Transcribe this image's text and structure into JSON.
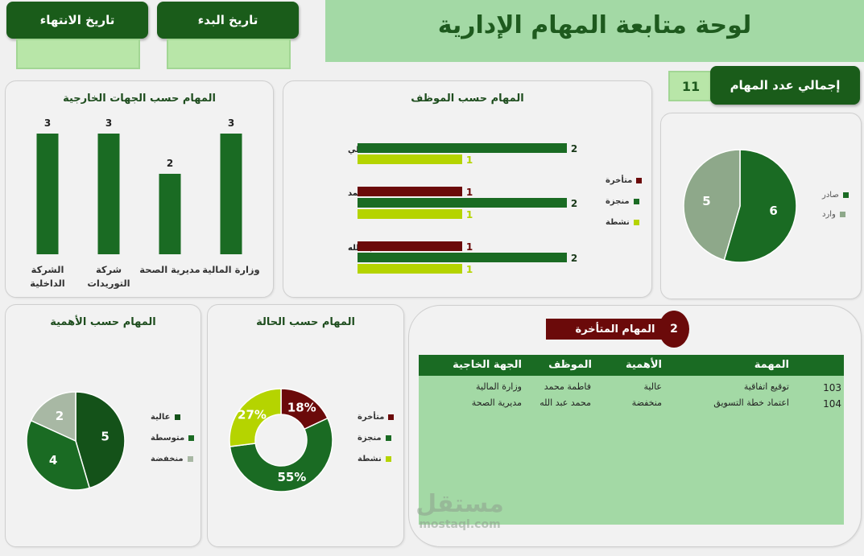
{
  "header": {
    "title": "لوحة متابعة المهام الإدارية",
    "end_date_label": "تاريخ الانتهاء",
    "start_date_label": "تاريخ البدء",
    "end_date_value": "",
    "start_date_value": ""
  },
  "total": {
    "label": "إجمالي عدد المهام",
    "value": "11"
  },
  "external": {
    "title": "المهام حسب الجهات الخارجية"
  },
  "employee": {
    "title": "المهام حسب الموظف",
    "legend": [
      "متأخرة",
      "منجزة",
      "نشطة"
    ]
  },
  "direction": {
    "legend": [
      "صادر",
      "وارد"
    ]
  },
  "importance": {
    "title": "المهام حسب الأهمية",
    "legend": [
      "عالية",
      "متوسطة",
      "منخفضة"
    ]
  },
  "status": {
    "title": "المهام حسب الحالة",
    "legend": [
      "متأخرة",
      "منجزة",
      "نشطة"
    ]
  },
  "late": {
    "label": "المهام المتأخرة",
    "count": "2",
    "headers": [
      "المهمة",
      "الأهمية",
      "الموظف",
      "الجهة الخاجية"
    ],
    "rows": [
      {
        "id": "103",
        "task": "توقيع اتفاقية",
        "importance": "عالية",
        "employee": "فاطمة محمد",
        "entity": "وزارة المالية"
      },
      {
        "id": "104",
        "task": "اعتماد خطة التسويق",
        "importance": "منخفضة",
        "employee": "محمد عبد الله",
        "entity": "مديرية الصحة"
      }
    ]
  },
  "watermark": {
    "logo_text": "مستقل",
    "url": "mostaql.com"
  },
  "colors": {
    "dark_green": "#1a6b23",
    "light_green_bar": "#b5d400",
    "maroon": "#6b0a0a",
    "grey_green": "#8ea88a",
    "panel_green": "#a3d9a5"
  },
  "chart_data": [
    {
      "type": "bar",
      "title": "المهام حسب الجهات الخارجية",
      "categories": [
        "الشركة الداخلية",
        "شركة التوريدات",
        "مديرية الصحة",
        "وزارة المالية"
      ],
      "values": [
        3,
        3,
        2,
        3
      ],
      "ylim": [
        0,
        3.5
      ]
    },
    {
      "type": "bar",
      "orientation": "horizontal",
      "title": "المهام حسب الموظف",
      "categories": [
        "أحمد علي",
        "فاطمة محمد",
        "محمد عبد الله"
      ],
      "series": [
        {
          "name": "متأخرة",
          "values": [
            0,
            1,
            1
          ]
        },
        {
          "name": "منجزة",
          "values": [
            2,
            2,
            2
          ]
        },
        {
          "name": "نشطة",
          "values": [
            1,
            1,
            1
          ]
        }
      ],
      "xlim": [
        0,
        2.3
      ]
    },
    {
      "type": "pie",
      "labels": [
        "صادر",
        "وارد"
      ],
      "values": [
        6,
        5
      ]
    },
    {
      "type": "pie",
      "title": "المهام حسب الأهمية",
      "labels": [
        "عالية",
        "متوسطة",
        "منخفضة"
      ],
      "values": [
        5,
        4,
        2
      ]
    },
    {
      "type": "pie",
      "subtype": "doughnut",
      "title": "المهام حسب الحالة",
      "labels": [
        "متأخرة",
        "منجزة",
        "نشطة"
      ],
      "values": [
        18,
        55,
        27
      ],
      "value_labels": [
        "18%",
        "55%",
        "27%"
      ]
    }
  ]
}
